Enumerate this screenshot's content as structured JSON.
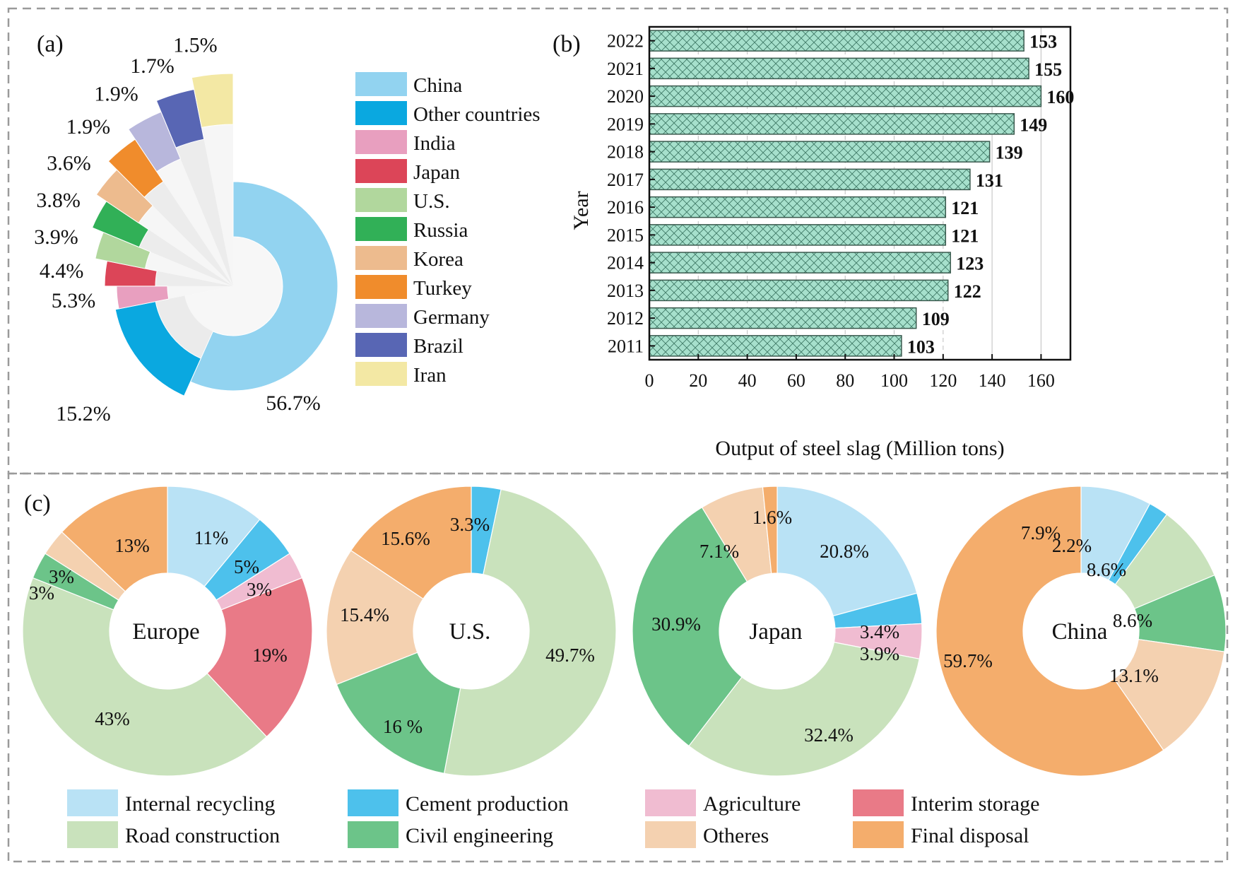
{
  "chart_data": [
    {
      "panel_label": "(a)",
      "type": "pie",
      "title": "",
      "style": "radial-pie (China and Other countries as full donut sectors; remaining countries as equal-angle wedges with outer radius increasing)",
      "categories": [
        "China",
        "Other countries",
        "India",
        "Japan",
        "U.S.",
        "Russia",
        "Korea",
        "Turkey",
        "Germany",
        "Brazil",
        "Iran"
      ],
      "values": [
        56.7,
        15.2,
        5.3,
        4.4,
        3.9,
        3.8,
        3.6,
        1.9,
        1.9,
        1.7,
        1.5
      ],
      "labels": [
        "56.7%",
        "15.2%",
        "5.3%",
        "4.4%",
        "3.9%",
        "3.8%",
        "3.6%",
        "1.9%",
        "1.9%",
        "1.7%",
        "1.5%"
      ],
      "colors": [
        "#92d3f0",
        "#0aa8e0",
        "#e89fbf",
        "#dc4558",
        "#b1d79d",
        "#31b057",
        "#edbb8e",
        "#f08c2c",
        "#b8b7dc",
        "#5866b4",
        "#f3e8a4"
      ],
      "legend": {
        "position": "right",
        "entries": [
          "China",
          "Other countries",
          "India",
          "Japan",
          "U.S.",
          "Russia",
          "Korea",
          "Turkey",
          "Germany",
          "Brazil",
          "Iran"
        ]
      }
    },
    {
      "panel_label": "(b)",
      "type": "bar",
      "orientation": "horizontal",
      "title": "",
      "categories": [
        "2022",
        "2021",
        "2020",
        "2019",
        "2018",
        "2017",
        "2016",
        "2015",
        "2014",
        "2013",
        "2012",
        "2011"
      ],
      "values": [
        153,
        155,
        160,
        149,
        139,
        131,
        121,
        121,
        123,
        122,
        109,
        103
      ],
      "data_labels": [
        "153",
        "155",
        "160",
        "149",
        "139",
        "131",
        "121",
        "121",
        "123",
        "122",
        "109",
        "103"
      ],
      "xlabel": "Output of steel slag (Million tons)",
      "ylabel": "Year",
      "xlim": [
        0,
        172
      ],
      "xticks": [
        "0",
        "20",
        "40",
        "60",
        "80",
        "100",
        "120",
        "140",
        "160"
      ],
      "grid": "vertical",
      "bar_color": "#a6e0cc",
      "hatch": "crosshatch"
    },
    {
      "panel_label": "(c)",
      "type": "pie",
      "style": "donut",
      "legend": {
        "position": "bottom",
        "entries": [
          "Internal recycling",
          "Cement production",
          "Agriculture",
          "Interim storage",
          "Road construction",
          "Civil engineering",
          "Otheres",
          "Final disposal"
        ],
        "colors": [
          "#b9e2f5",
          "#4dc1ec",
          "#f0bcd1",
          "#e97a87",
          "#c9e2bc",
          "#6cc489",
          "#f4d1b0",
          "#f4ad6c"
        ]
      },
      "charts": [
        {
          "center_label": "Europe",
          "slices": [
            {
              "category": "Internal recycling",
              "value": 11,
              "label": "11%"
            },
            {
              "category": "Cement production",
              "value": 5,
              "label": "5%"
            },
            {
              "category": "Agriculture",
              "value": 3,
              "label": "3%"
            },
            {
              "category": "Interim storage",
              "value": 19,
              "label": "19%"
            },
            {
              "category": "Road construction",
              "value": 43,
              "label": "43%"
            },
            {
              "category": "Civil engineering",
              "value": 3,
              "label": "3%"
            },
            {
              "category": "Otheres",
              "value": 3,
              "label": "3%"
            },
            {
              "category": "Final disposal",
              "value": 13,
              "label": "13%"
            }
          ]
        },
        {
          "center_label": "U.S.",
          "slices": [
            {
              "category": "Cement production",
              "value": 3.3,
              "label": "3.3%"
            },
            {
              "category": "Road construction",
              "value": 49.7,
              "label": "49.7%"
            },
            {
              "category": "Civil engineering",
              "value": 16,
              "label": "16 %"
            },
            {
              "category": "Otheres",
              "value": 15.4,
              "label": "15.4%"
            },
            {
              "category": "Final disposal",
              "value": 15.6,
              "label": "15.6%"
            }
          ]
        },
        {
          "center_label": "Japan",
          "slices": [
            {
              "category": "Internal recycling",
              "value": 20.8,
              "label": "20.8%"
            },
            {
              "category": "Cement production",
              "value": 3.4,
              "label": "3.4%"
            },
            {
              "category": "Agriculture",
              "value": 3.9,
              "label": "3.9%"
            },
            {
              "category": "Road construction",
              "value": 32.4,
              "label": "32.4%"
            },
            {
              "category": "Civil engineering",
              "value": 30.9,
              "label": "30.9%"
            },
            {
              "category": "Otheres",
              "value": 7.1,
              "label": "7.1%"
            },
            {
              "category": "Final disposal",
              "value": 1.6,
              "label": "1.6%"
            }
          ]
        },
        {
          "center_label": "China",
          "slices": [
            {
              "category": "Internal recycling",
              "value": 7.9,
              "label": "7.9%"
            },
            {
              "category": "Cement production",
              "value": 2.2,
              "label": "2.2%"
            },
            {
              "category": "Road construction",
              "value": 8.6,
              "label": "8.6%"
            },
            {
              "category": "Civil engineering",
              "value": 8.6,
              "label": "8.6%"
            },
            {
              "category": "Otheres",
              "value": 13.1,
              "label": "13.1%"
            },
            {
              "category": "Final disposal",
              "value": 59.7,
              "label": "59.7%"
            }
          ]
        }
      ]
    }
  ]
}
